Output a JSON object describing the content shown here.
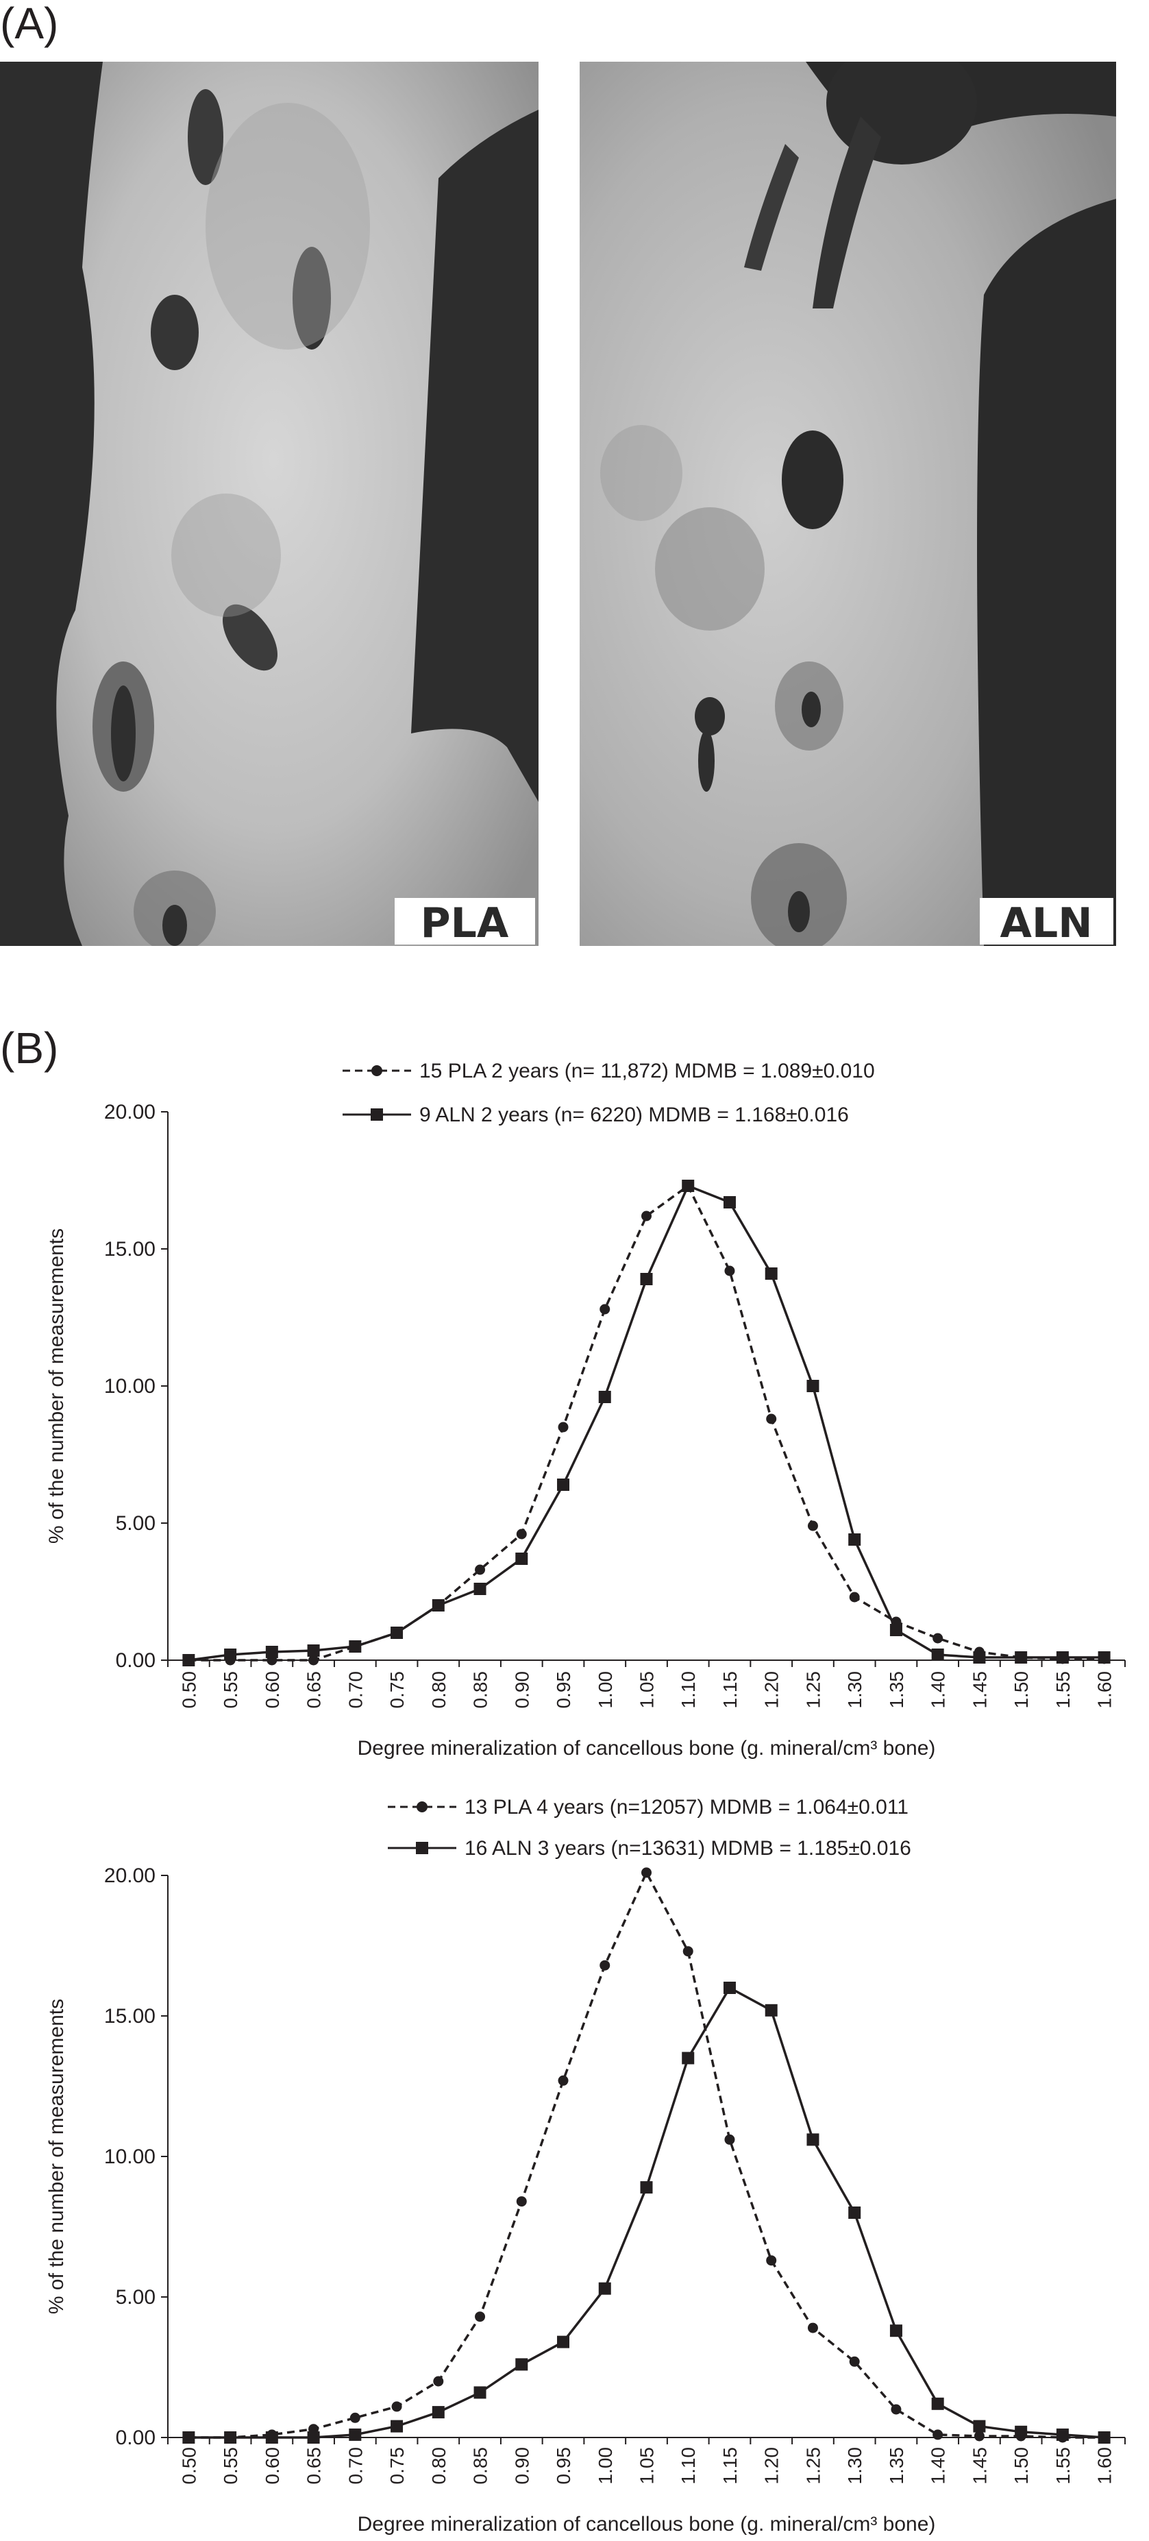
{
  "panels": {
    "a_label": "(A)",
    "b_label": "(B)"
  },
  "micrographs": [
    {
      "tag": "PLA"
    },
    {
      "tag": "ALN"
    }
  ],
  "chart_data": [
    {
      "type": "line",
      "title": "",
      "xlabel": "Degree mineralization of cancellous bone (g. mineral/cm³ bone)",
      "ylabel": "% of the number of measurements",
      "x": [
        "0.50",
        "0.55",
        "0.60",
        "0.65",
        "0.70",
        "0.75",
        "0.80",
        "0.85",
        "0.90",
        "0.95",
        "1.00",
        "1.05",
        "1.10",
        "1.15",
        "1.20",
        "1.25",
        "1.30",
        "1.35",
        "1.40",
        "1.45",
        "1.50",
        "1.55",
        "1.60"
      ],
      "yticks": [
        "0.00",
        "5.00",
        "10.00",
        "15.00",
        "20.00"
      ],
      "ylim": [
        0,
        20
      ],
      "grid": false,
      "legend_position": "top-center",
      "series": [
        {
          "name": "15 PLA 2 years (n= 11,872) MDMB = 1.089±0.010",
          "style": "dashed",
          "marker": "circle",
          "color": "#231f20",
          "values": [
            0.0,
            0.0,
            0.0,
            0.0,
            0.5,
            1.0,
            2.0,
            3.3,
            4.6,
            8.5,
            12.8,
            16.2,
            17.3,
            14.2,
            8.8,
            4.9,
            2.3,
            1.4,
            0.8,
            0.3,
            0.1,
            0.05,
            0.05
          ]
        },
        {
          "name": "9 ALN 2 years (n= 6220) MDMB = 1.168±0.016",
          "style": "solid",
          "marker": "square",
          "color": "#231f20",
          "values": [
            0.0,
            0.2,
            0.3,
            0.35,
            0.5,
            1.0,
            2.0,
            2.6,
            3.7,
            6.4,
            9.6,
            13.9,
            17.3,
            16.7,
            14.1,
            10.0,
            4.4,
            1.1,
            0.2,
            0.1,
            0.1,
            0.1,
            0.1
          ]
        }
      ]
    },
    {
      "type": "line",
      "title": "",
      "xlabel": "Degree mineralization of cancellous bone (g. mineral/cm³ bone)",
      "ylabel": "% of the number of measurements",
      "x": [
        "0.50",
        "0.55",
        "0.60",
        "0.65",
        "0.70",
        "0.75",
        "0.80",
        "0.85",
        "0.90",
        "0.95",
        "1.00",
        "1.05",
        "1.10",
        "1.15",
        "1.20",
        "1.25",
        "1.30",
        "1.35",
        "1.40",
        "1.45",
        "1.50",
        "1.55",
        "1.60"
      ],
      "yticks": [
        "0.00",
        "5.00",
        "10.00",
        "15.00",
        "20.00"
      ],
      "ylim": [
        0,
        20
      ],
      "grid": false,
      "legend_position": "top-center",
      "series": [
        {
          "name": "13 PLA 4 years (n=12057) MDMB = 1.064±0.011",
          "style": "dashed",
          "marker": "circle",
          "color": "#231f20",
          "values": [
            0.0,
            0.0,
            0.1,
            0.3,
            0.7,
            1.1,
            2.0,
            4.3,
            8.4,
            12.7,
            16.8,
            20.1,
            17.3,
            10.6,
            6.3,
            3.9,
            2.7,
            1.0,
            0.1,
            0.05,
            0.05,
            0.0,
            0.0
          ]
        },
        {
          "name": "16 ALN 3 years (n=13631) MDMB = 1.185±0.016",
          "style": "solid",
          "marker": "square",
          "color": "#231f20",
          "values": [
            0.0,
            0.0,
            0.0,
            0.0,
            0.1,
            0.4,
            0.9,
            1.6,
            2.6,
            3.4,
            5.3,
            8.9,
            13.5,
            16.0,
            15.2,
            10.6,
            8.0,
            3.8,
            1.2,
            0.4,
            0.2,
            0.1,
            0.0
          ]
        }
      ]
    }
  ]
}
